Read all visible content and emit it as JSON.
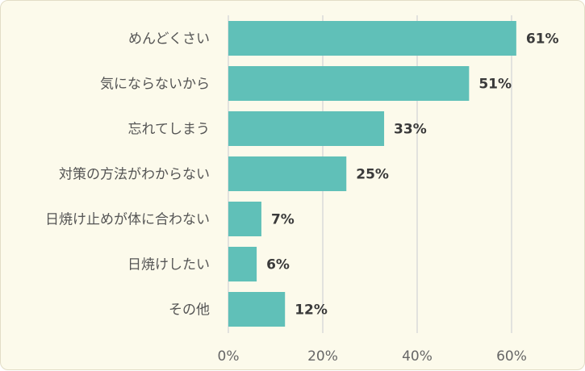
{
  "colors": {
    "bar": "#60c0b8",
    "grid": "#d9d9d9",
    "background": "#fcfaeb"
  },
  "chart_data": {
    "type": "bar",
    "orientation": "horizontal",
    "categories": [
      "めんどくさい",
      "気にならないから",
      "忘れてしまう",
      "対策の方法がわからない",
      "日焼け止めが体に合わない",
      "日焼けしたい",
      "その他"
    ],
    "values": [
      61,
      51,
      33,
      25,
      7,
      6,
      12
    ],
    "value_labels": [
      "61%",
      "51%",
      "33%",
      "25%",
      "7%",
      "6%",
      "12%"
    ],
    "title": "",
    "xlabel": "",
    "ylabel": "",
    "xlim": [
      0,
      60
    ],
    "xticks": [
      0,
      20,
      40,
      60
    ],
    "xtick_labels": [
      "0%",
      "20%",
      "40%",
      "60%"
    ],
    "grid": true,
    "legend": "none"
  }
}
